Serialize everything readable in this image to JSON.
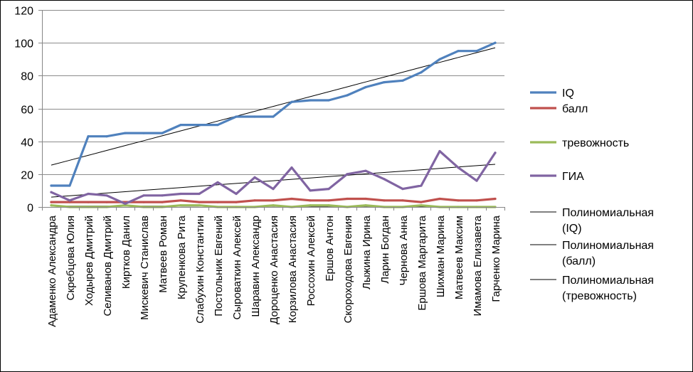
{
  "chart_data": {
    "type": "line",
    "title": "",
    "xlabel": "",
    "ylabel": "",
    "ylim": [
      0,
      120
    ],
    "yticks": [
      0,
      20,
      40,
      60,
      80,
      100,
      120
    ],
    "grid": true,
    "legend_position": "right",
    "categories": [
      "Адаменко Александра",
      "Скребцова Юлия",
      "Ходырев Дмитрий",
      "Селиванов Дмитрий",
      "Киртков Данил",
      "Мискевич Станислав",
      "Матвеев Роман",
      "Крупенкова Рита",
      "Слабухин Константин",
      "Постольник Евгений",
      "Сыроваткин Алексей",
      "Шаравин Александр",
      "Дороценко Анастасия",
      "Корзилова Анастасия",
      "Россохин Алексей",
      "Ершов Антон",
      "Скороходова Евгения",
      "Лыжина Ирина",
      "Ларин Богдан",
      "Чернова Анна",
      "Ершова Маргарита",
      "Шихман Марина",
      "Матвеев Максим",
      "Имамова Елизавета",
      "Гарченко Марина"
    ],
    "series": [
      {
        "name": "IQ",
        "color": "#4f81bd",
        "values": [
          13,
          13,
          43,
          43,
          45,
          45,
          45,
          50,
          50,
          50,
          55,
          55,
          55,
          64,
          65,
          65,
          68,
          73,
          76,
          77,
          82,
          90,
          95,
          95,
          100
        ]
      },
      {
        "name": "балл",
        "color": "#c0504d",
        "values": [
          3,
          3,
          3,
          3,
          3,
          3,
          3,
          4,
          3,
          3,
          3,
          4,
          4,
          5,
          4,
          4,
          5,
          5,
          4,
          4,
          3,
          5,
          4,
          4,
          5
        ]
      },
      {
        "name": "тревожность",
        "color": "#9bbb59",
        "values": [
          1,
          0,
          0,
          0,
          1,
          0,
          0,
          1,
          1,
          0,
          0,
          0,
          1,
          0,
          1,
          1,
          0,
          1,
          0,
          0,
          1,
          0,
          0,
          0,
          0
        ]
      },
      {
        "name": "ГИА",
        "color": "#8064a2",
        "values": [
          9,
          4,
          8,
          7,
          2,
          7,
          7,
          8,
          8,
          15,
          8,
          18,
          11,
          24,
          10,
          11,
          20,
          22,
          17,
          11,
          13,
          34,
          24,
          16,
          33
        ]
      }
    ],
    "trendlines": [
      {
        "name": "Полиномиальная (IQ)",
        "color": "#000000",
        "start": 25.5,
        "end": 97
      },
      {
        "name": "Полиномиальная (балл)",
        "color": "#000000",
        "start": 6,
        "end": 26
      },
      {
        "name": "Полиномиальная (тревожность)",
        "color": "#000000",
        "start": 0.6,
        "end": 0.2
      }
    ],
    "legend": [
      {
        "label": "IQ",
        "color": "#4f81bd",
        "weight": "thick"
      },
      {
        "label": "балл",
        "color": "#c0504d",
        "weight": "thick"
      },
      {
        "label": "тревожность",
        "color": "#9bbb59",
        "weight": "thick"
      },
      {
        "label": "ГИА",
        "color": "#8064a2",
        "weight": "thick"
      },
      {
        "label": "Полиномиальная (IQ)",
        "color": "#000000",
        "weight": "thin"
      },
      {
        "label": "Полиномиальная (балл)",
        "color": "#000000",
        "weight": "thin"
      },
      {
        "label": "Полиномиальная (тревожность)",
        "color": "#000000",
        "weight": "thin"
      }
    ]
  }
}
